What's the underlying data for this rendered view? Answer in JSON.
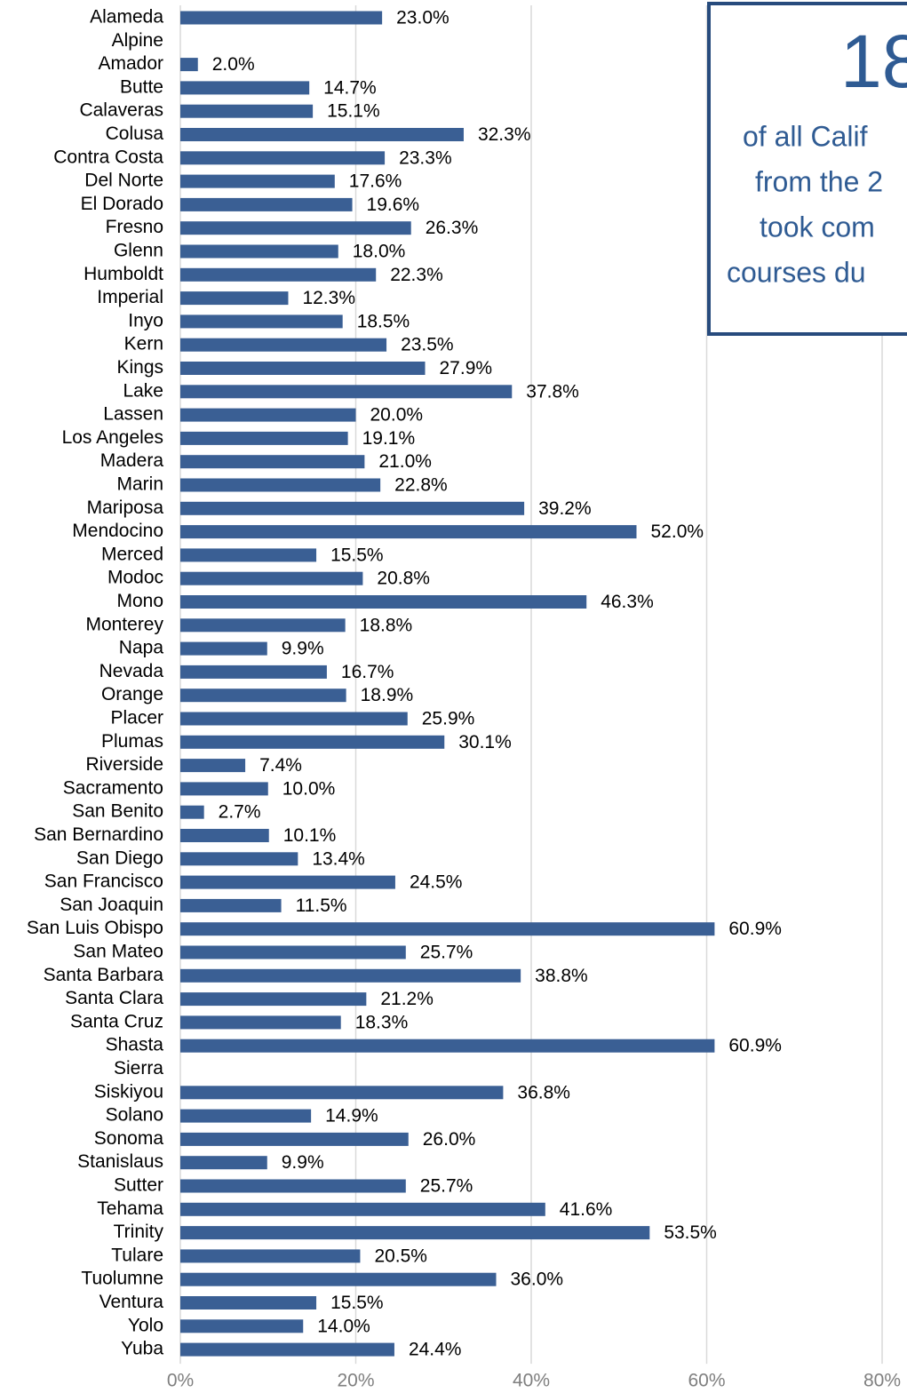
{
  "chart_data": {
    "type": "barh",
    "categories": [
      "Alameda",
      "Alpine",
      "Amador",
      "Butte",
      "Calaveras",
      "Colusa",
      "Contra Costa",
      "Del Norte",
      "El Dorado",
      "Fresno",
      "Glenn",
      "Humboldt",
      "Imperial",
      "Inyo",
      "Kern",
      "Kings",
      "Lake",
      "Lassen",
      "Los Angeles",
      "Madera",
      "Marin",
      "Mariposa",
      "Mendocino",
      "Merced",
      "Modoc",
      "Mono",
      "Monterey",
      "Napa",
      "Nevada",
      "Orange",
      "Placer",
      "Plumas",
      "Riverside",
      "Sacramento",
      "San Benito",
      "San Bernardino",
      "San Diego",
      "San Francisco",
      "San Joaquin",
      "San Luis Obispo",
      "San Mateo",
      "Santa Barbara",
      "Santa Clara",
      "Santa Cruz",
      "Shasta",
      "Sierra",
      "Siskiyou",
      "Solano",
      "Sonoma",
      "Stanislaus",
      "Sutter",
      "Tehama",
      "Trinity",
      "Tulare",
      "Tuolumne",
      "Ventura",
      "Yolo",
      "Yuba"
    ],
    "values": [
      23.0,
      null,
      2.0,
      14.7,
      15.1,
      32.3,
      23.3,
      17.6,
      19.6,
      26.3,
      18.0,
      22.3,
      12.3,
      18.5,
      23.5,
      27.9,
      37.8,
      20.0,
      19.1,
      21.0,
      22.8,
      39.2,
      52.0,
      15.5,
      20.8,
      46.3,
      18.8,
      9.9,
      16.7,
      18.9,
      25.9,
      30.1,
      7.4,
      10.0,
      2.7,
      10.1,
      13.4,
      24.5,
      11.5,
      60.9,
      25.7,
      38.8,
      21.2,
      18.3,
      60.9,
      null,
      36.8,
      14.9,
      26.0,
      9.9,
      25.7,
      41.6,
      53.5,
      20.5,
      36.0,
      15.5,
      14.0,
      24.4
    ],
    "value_labels": [
      "23.0%",
      null,
      "2.0%",
      "14.7%",
      "15.1%",
      "32.3%",
      "23.3%",
      "17.6%",
      "19.6%",
      "26.3%",
      "18.0%",
      "22.3%",
      "12.3%",
      "18.5%",
      "23.5%",
      "27.9%",
      "37.8%",
      "20.0%",
      "19.1%",
      "21.0%",
      "22.8%",
      "39.2%",
      "52.0%",
      "15.5%",
      "20.8%",
      "46.3%",
      "18.8%",
      "9.9%",
      "16.7%",
      "18.9%",
      "25.9%",
      "30.1%",
      "7.4%",
      "10.0%",
      "2.7%",
      "10.1%",
      "13.4%",
      "24.5%",
      "11.5%",
      "60.9%",
      "25.7%",
      "38.8%",
      "21.2%",
      "18.3%",
      "60.9%",
      null,
      "36.8%",
      "14.9%",
      "26.0%",
      "9.9%",
      "25.7%",
      "41.6%",
      "53.5%",
      "20.5%",
      "36.0%",
      "15.5%",
      "14.0%",
      "24.4%"
    ],
    "color": "#3a5f94",
    "xlim": [
      0,
      80
    ],
    "xticks": [
      {
        "value": 0,
        "label": "0%"
      },
      {
        "value": 20,
        "label": "20%"
      },
      {
        "value": 40,
        "label": "40%"
      },
      {
        "value": 60,
        "label": "60%"
      },
      {
        "value": 80,
        "label": "80%"
      }
    ],
    "grid": true,
    "annotations": [
      "18",
      "of all Calif",
      "from the 2",
      "took com",
      "courses du"
    ]
  }
}
